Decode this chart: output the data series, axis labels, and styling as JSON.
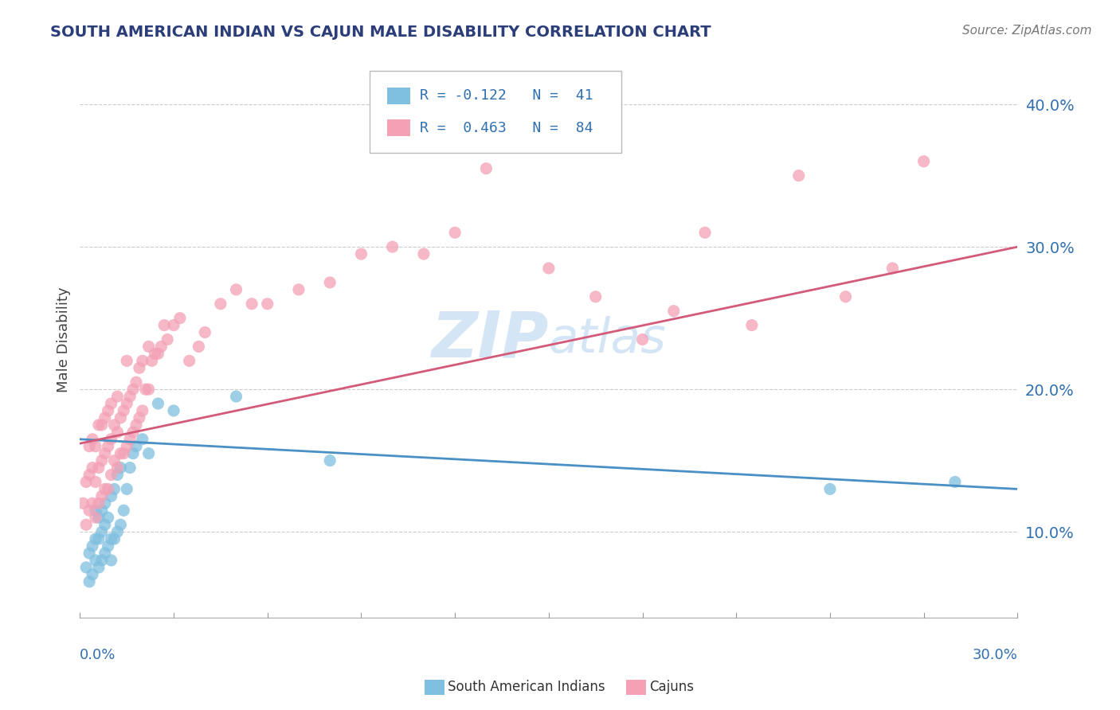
{
  "title": "SOUTH AMERICAN INDIAN VS CAJUN MALE DISABILITY CORRELATION CHART",
  "source": "Source: ZipAtlas.com",
  "ylabel": "Male Disability",
  "xmin": 0.0,
  "xmax": 0.3,
  "ymin": 0.04,
  "ymax": 0.43,
  "yticks": [
    0.1,
    0.2,
    0.3,
    0.4
  ],
  "ytick_labels": [
    "10.0%",
    "20.0%",
    "30.0%",
    "40.0%"
  ],
  "legend_r1": "R = -0.122",
  "legend_n1": "N =  41",
  "legend_r2": "R =  0.463",
  "legend_n2": "N =  84",
  "color_blue": "#7fbfdf",
  "color_pink": "#f4a0b5",
  "color_blue_line": "#4a90c4",
  "color_pink_line": "#d45a7a",
  "color_blue_dark": "#3070b0",
  "color_title": "#2c3e7a",
  "color_source": "#777777",
  "watermark_color": "#d0e4f5",
  "blue_scatter_x": [
    0.002,
    0.003,
    0.003,
    0.004,
    0.004,
    0.005,
    0.005,
    0.005,
    0.006,
    0.006,
    0.006,
    0.007,
    0.007,
    0.007,
    0.008,
    0.008,
    0.008,
    0.009,
    0.009,
    0.01,
    0.01,
    0.01,
    0.011,
    0.011,
    0.012,
    0.012,
    0.013,
    0.013,
    0.014,
    0.015,
    0.016,
    0.017,
    0.018,
    0.02,
    0.022,
    0.025,
    0.03,
    0.05,
    0.08,
    0.24,
    0.28
  ],
  "blue_scatter_y": [
    0.075,
    0.065,
    0.085,
    0.07,
    0.09,
    0.08,
    0.095,
    0.115,
    0.075,
    0.095,
    0.11,
    0.08,
    0.1,
    0.115,
    0.085,
    0.105,
    0.12,
    0.09,
    0.11,
    0.08,
    0.095,
    0.125,
    0.095,
    0.13,
    0.1,
    0.14,
    0.105,
    0.145,
    0.115,
    0.13,
    0.145,
    0.155,
    0.16,
    0.165,
    0.155,
    0.19,
    0.185,
    0.195,
    0.15,
    0.13,
    0.135
  ],
  "pink_scatter_x": [
    0.001,
    0.002,
    0.002,
    0.003,
    0.003,
    0.003,
    0.004,
    0.004,
    0.004,
    0.005,
    0.005,
    0.005,
    0.006,
    0.006,
    0.006,
    0.007,
    0.007,
    0.007,
    0.008,
    0.008,
    0.008,
    0.009,
    0.009,
    0.009,
    0.01,
    0.01,
    0.01,
    0.011,
    0.011,
    0.012,
    0.012,
    0.012,
    0.013,
    0.013,
    0.014,
    0.014,
    0.015,
    0.015,
    0.015,
    0.016,
    0.016,
    0.017,
    0.017,
    0.018,
    0.018,
    0.019,
    0.019,
    0.02,
    0.02,
    0.021,
    0.022,
    0.022,
    0.023,
    0.024,
    0.025,
    0.026,
    0.027,
    0.028,
    0.03,
    0.032,
    0.035,
    0.038,
    0.04,
    0.045,
    0.05,
    0.055,
    0.06,
    0.07,
    0.08,
    0.09,
    0.1,
    0.11,
    0.12,
    0.13,
    0.15,
    0.165,
    0.18,
    0.19,
    0.2,
    0.215,
    0.23,
    0.245,
    0.26,
    0.27
  ],
  "pink_scatter_y": [
    0.12,
    0.105,
    0.135,
    0.115,
    0.14,
    0.16,
    0.12,
    0.145,
    0.165,
    0.11,
    0.135,
    0.16,
    0.12,
    0.145,
    0.175,
    0.125,
    0.15,
    0.175,
    0.13,
    0.155,
    0.18,
    0.13,
    0.16,
    0.185,
    0.14,
    0.165,
    0.19,
    0.15,
    0.175,
    0.145,
    0.17,
    0.195,
    0.155,
    0.18,
    0.155,
    0.185,
    0.16,
    0.19,
    0.22,
    0.165,
    0.195,
    0.17,
    0.2,
    0.175,
    0.205,
    0.18,
    0.215,
    0.185,
    0.22,
    0.2,
    0.2,
    0.23,
    0.22,
    0.225,
    0.225,
    0.23,
    0.245,
    0.235,
    0.245,
    0.25,
    0.22,
    0.23,
    0.24,
    0.26,
    0.27,
    0.26,
    0.26,
    0.27,
    0.275,
    0.295,
    0.3,
    0.295,
    0.31,
    0.355,
    0.285,
    0.265,
    0.235,
    0.255,
    0.31,
    0.245,
    0.35,
    0.265,
    0.285,
    0.36
  ]
}
